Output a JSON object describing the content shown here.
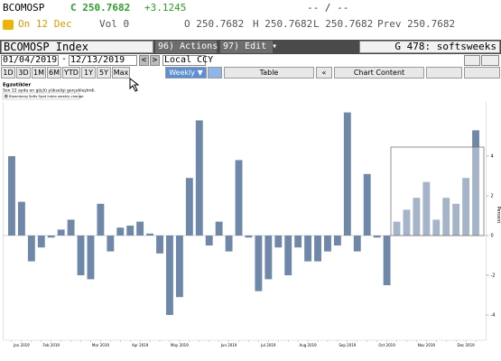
{
  "header": {
    "ticker": "BCOMOSP",
    "close": "C 250.7682",
    "change": "+3.1245",
    "bid_ask": "-- / --",
    "date": "On 12 Dec",
    "volume": "Vol 0",
    "open": "O 250.7682",
    "high": "H 250.7682",
    "low": "L 250.7682",
    "prev": "Prev 250.7682"
  },
  "toolbar": {
    "security": "BCOMOSP Index",
    "actions": "96) Actions ▾",
    "edit": "97) Edit ▾",
    "template": "G 478: softsweeks",
    "start_date": "01/04/2019",
    "end_date": "12/13/2019",
    "currency": "Local CCY",
    "ranges": [
      "1D",
      "3D",
      "1M",
      "6M",
      "YTD",
      "1Y",
      "5Y",
      "Max"
    ],
    "frequency": "Weekly ▼",
    "table": "Table",
    "chart_content": "Chart Content"
  },
  "chart_data": {
    "type": "bar",
    "title": "Egzotikler",
    "subtitle": "Son 12 ayda en güçlü yükselişi gerçekleştirdi.",
    "y_label": "Percent",
    "categories": [
      null,
      "Jan 2019",
      null,
      null,
      "Feb 2019",
      null,
      null,
      null,
      null,
      "Mar 2019",
      null,
      null,
      null,
      "Apr 2019",
      null,
      null,
      null,
      "May 2019",
      null,
      null,
      null,
      null,
      "Jun 2019",
      null,
      null,
      null,
      "Jul 2019",
      null,
      null,
      null,
      "Aug 2019",
      null,
      null,
      null,
      "Sep 2019",
      null,
      null,
      null,
      "Oct 2019",
      null,
      null,
      null,
      "Nov 2019",
      null,
      null,
      null,
      "Dec 2019",
      null
    ],
    "series": [
      {
        "name": "Bloomberg Softs Spot Index weekly change",
        "color": "#6f87a9",
        "values": [
          4.0,
          1.7,
          -1.3,
          -0.6,
          -0.1,
          0.3,
          0.8,
          -2.0,
          -2.2,
          1.6,
          -0.8,
          0.4,
          0.5,
          0.7,
          0.1,
          -0.9,
          -4.0,
          -3.1,
          2.9,
          5.8,
          -0.5,
          0.7,
          -0.8,
          3.8,
          -0.1,
          -2.8,
          -2.2,
          -0.6,
          -2.0,
          -0.6,
          -1.3,
          -1.3,
          -0.8,
          -0.5,
          6.2,
          -0.8,
          3.1,
          -0.1,
          -2.5,
          0.7,
          1.3,
          1.9,
          2.7,
          0.8,
          1.9,
          1.6,
          2.9,
          5.3
        ]
      }
    ],
    "ylim": [
      -5,
      6.5
    ],
    "yticks": [
      -4,
      -2,
      0,
      2,
      4
    ],
    "grid": false
  }
}
